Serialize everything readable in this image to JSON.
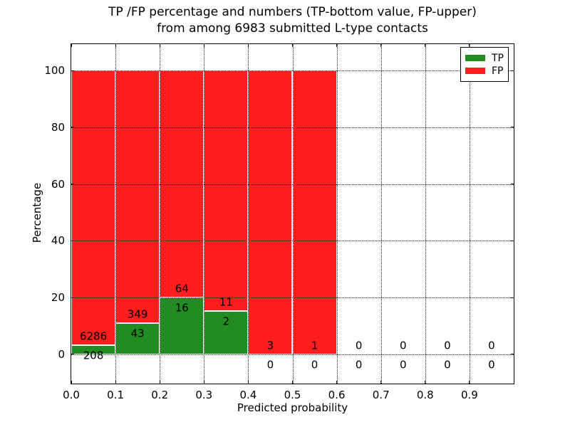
{
  "chart_data": {
    "type": "bar",
    "stacked": true,
    "title_lines": [
      "TP /FP percentage and numbers (TP-bottom value, FP-upper)",
      "from among 6983 submitted L-type contacts"
    ],
    "xlabel": "Predicted probability",
    "ylabel": "Percentage",
    "x_bins": [
      0.0,
      0.1,
      0.2,
      0.3,
      0.4,
      0.5,
      0.6,
      0.7,
      0.8,
      0.9
    ],
    "bin_width": 0.1,
    "x_tick_labels": [
      "0.0",
      "0.1",
      "0.2",
      "0.3",
      "0.4",
      "0.5",
      "0.6",
      "0.7",
      "0.8",
      "0.9"
    ],
    "y_tick_values": [
      0,
      20,
      40,
      60,
      80,
      100
    ],
    "y_tick_labels": [
      "0",
      "20",
      "40",
      "60",
      "80",
      "100"
    ],
    "xlim": [
      0.0,
      1.0
    ],
    "ylim": [
      -10.3,
      109.3
    ],
    "grid_style": "dotted",
    "legend_position": "upper-right",
    "bar_semantics": "Each 0.1 probability bin is a stacked bar: TP% bottom (green), FP% top (red), TP%+FP%=100 when the bin has data; raw counts are printed above (FP) and below (TP) the green segment top.",
    "series": [
      {
        "name": "TP",
        "color": "#228B22",
        "counts": [
          208,
          43,
          16,
          2,
          0,
          0,
          0,
          0,
          0,
          0
        ],
        "percent": [
          3.2,
          11.0,
          20.0,
          15.4,
          0.0,
          0.0,
          0.0,
          0.0,
          0.0,
          0.0
        ]
      },
      {
        "name": "FP",
        "color": "#FF1E1E",
        "counts": [
          6286,
          349,
          64,
          11,
          3,
          1,
          0,
          0,
          0,
          0
        ],
        "percent": [
          96.8,
          89.0,
          80.0,
          84.6,
          100.0,
          100.0,
          0.0,
          0.0,
          0.0,
          0.0
        ]
      }
    ]
  }
}
